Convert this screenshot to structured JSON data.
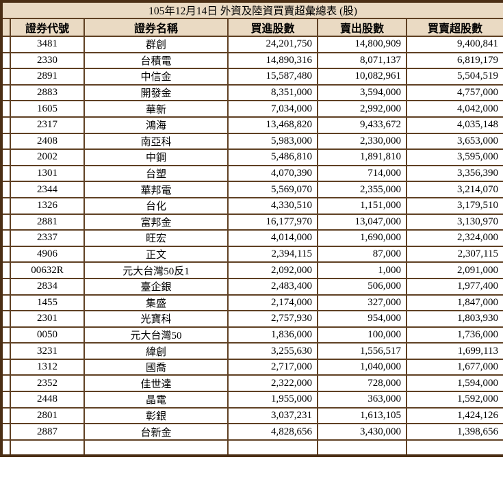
{
  "title": "105年12月14日 外資及陸資買賣超彙總表 (股)",
  "columns": [
    "證券代號",
    "證券名稱",
    "買進股數",
    "賣出股數",
    "買賣超股數"
  ],
  "rows": [
    {
      "code": "3481",
      "name": "群創",
      "buy": "24,201,750",
      "sell": "14,800,909",
      "net": "9,400,841"
    },
    {
      "code": "2330",
      "name": "台積電",
      "buy": "14,890,316",
      "sell": "8,071,137",
      "net": "6,819,179"
    },
    {
      "code": "2891",
      "name": "中信金",
      "buy": "15,587,480",
      "sell": "10,082,961",
      "net": "5,504,519"
    },
    {
      "code": "2883",
      "name": "開發金",
      "buy": "8,351,000",
      "sell": "3,594,000",
      "net": "4,757,000"
    },
    {
      "code": "1605",
      "name": "華新",
      "buy": "7,034,000",
      "sell": "2,992,000",
      "net": "4,042,000"
    },
    {
      "code": "2317",
      "name": "鴻海",
      "buy": "13,468,820",
      "sell": "9,433,672",
      "net": "4,035,148"
    },
    {
      "code": "2408",
      "name": "南亞科",
      "buy": "5,983,000",
      "sell": "2,330,000",
      "net": "3,653,000"
    },
    {
      "code": "2002",
      "name": "中鋼",
      "buy": "5,486,810",
      "sell": "1,891,810",
      "net": "3,595,000"
    },
    {
      "code": "1301",
      "name": "台塑",
      "buy": "4,070,390",
      "sell": "714,000",
      "net": "3,356,390"
    },
    {
      "code": "2344",
      "name": "華邦電",
      "buy": "5,569,070",
      "sell": "2,355,000",
      "net": "3,214,070"
    },
    {
      "code": "1326",
      "name": "台化",
      "buy": "4,330,510",
      "sell": "1,151,000",
      "net": "3,179,510"
    },
    {
      "code": "2881",
      "name": "富邦金",
      "buy": "16,177,970",
      "sell": "13,047,000",
      "net": "3,130,970"
    },
    {
      "code": "2337",
      "name": "旺宏",
      "buy": "4,014,000",
      "sell": "1,690,000",
      "net": "2,324,000"
    },
    {
      "code": "4906",
      "name": "正文",
      "buy": "2,394,115",
      "sell": "87,000",
      "net": "2,307,115"
    },
    {
      "code": "00632R",
      "name": "元大台灣50反1",
      "buy": "2,092,000",
      "sell": "1,000",
      "net": "2,091,000"
    },
    {
      "code": "2834",
      "name": "臺企銀",
      "buy": "2,483,400",
      "sell": "506,000",
      "net": "1,977,400"
    },
    {
      "code": "1455",
      "name": "集盛",
      "buy": "2,174,000",
      "sell": "327,000",
      "net": "1,847,000"
    },
    {
      "code": "2301",
      "name": "光寶科",
      "buy": "2,757,930",
      "sell": "954,000",
      "net": "1,803,930"
    },
    {
      "code": "0050",
      "name": "元大台灣50",
      "buy": "1,836,000",
      "sell": "100,000",
      "net": "1,736,000"
    },
    {
      "code": "3231",
      "name": "緯創",
      "buy": "3,255,630",
      "sell": "1,556,517",
      "net": "1,699,113"
    },
    {
      "code": "1312",
      "name": "國喬",
      "buy": "2,717,000",
      "sell": "1,040,000",
      "net": "1,677,000"
    },
    {
      "code": "2352",
      "name": "佳世達",
      "buy": "2,322,000",
      "sell": "728,000",
      "net": "1,594,000"
    },
    {
      "code": "2448",
      "name": "晶電",
      "buy": "1,955,000",
      "sell": "363,000",
      "net": "1,592,000"
    },
    {
      "code": "2801",
      "name": "彰銀",
      "buy": "3,037,231",
      "sell": "1,613,105",
      "net": "1,424,126"
    },
    {
      "code": "2887",
      "name": "台新金",
      "buy": "4,828,656",
      "sell": "3,430,000",
      "net": "1,398,656"
    }
  ],
  "colors": {
    "outer": "#4b2e14",
    "grid": "#5f4023",
    "headerbg": "#eadac3",
    "rowbg": "#ffffff",
    "text": "#000000"
  }
}
